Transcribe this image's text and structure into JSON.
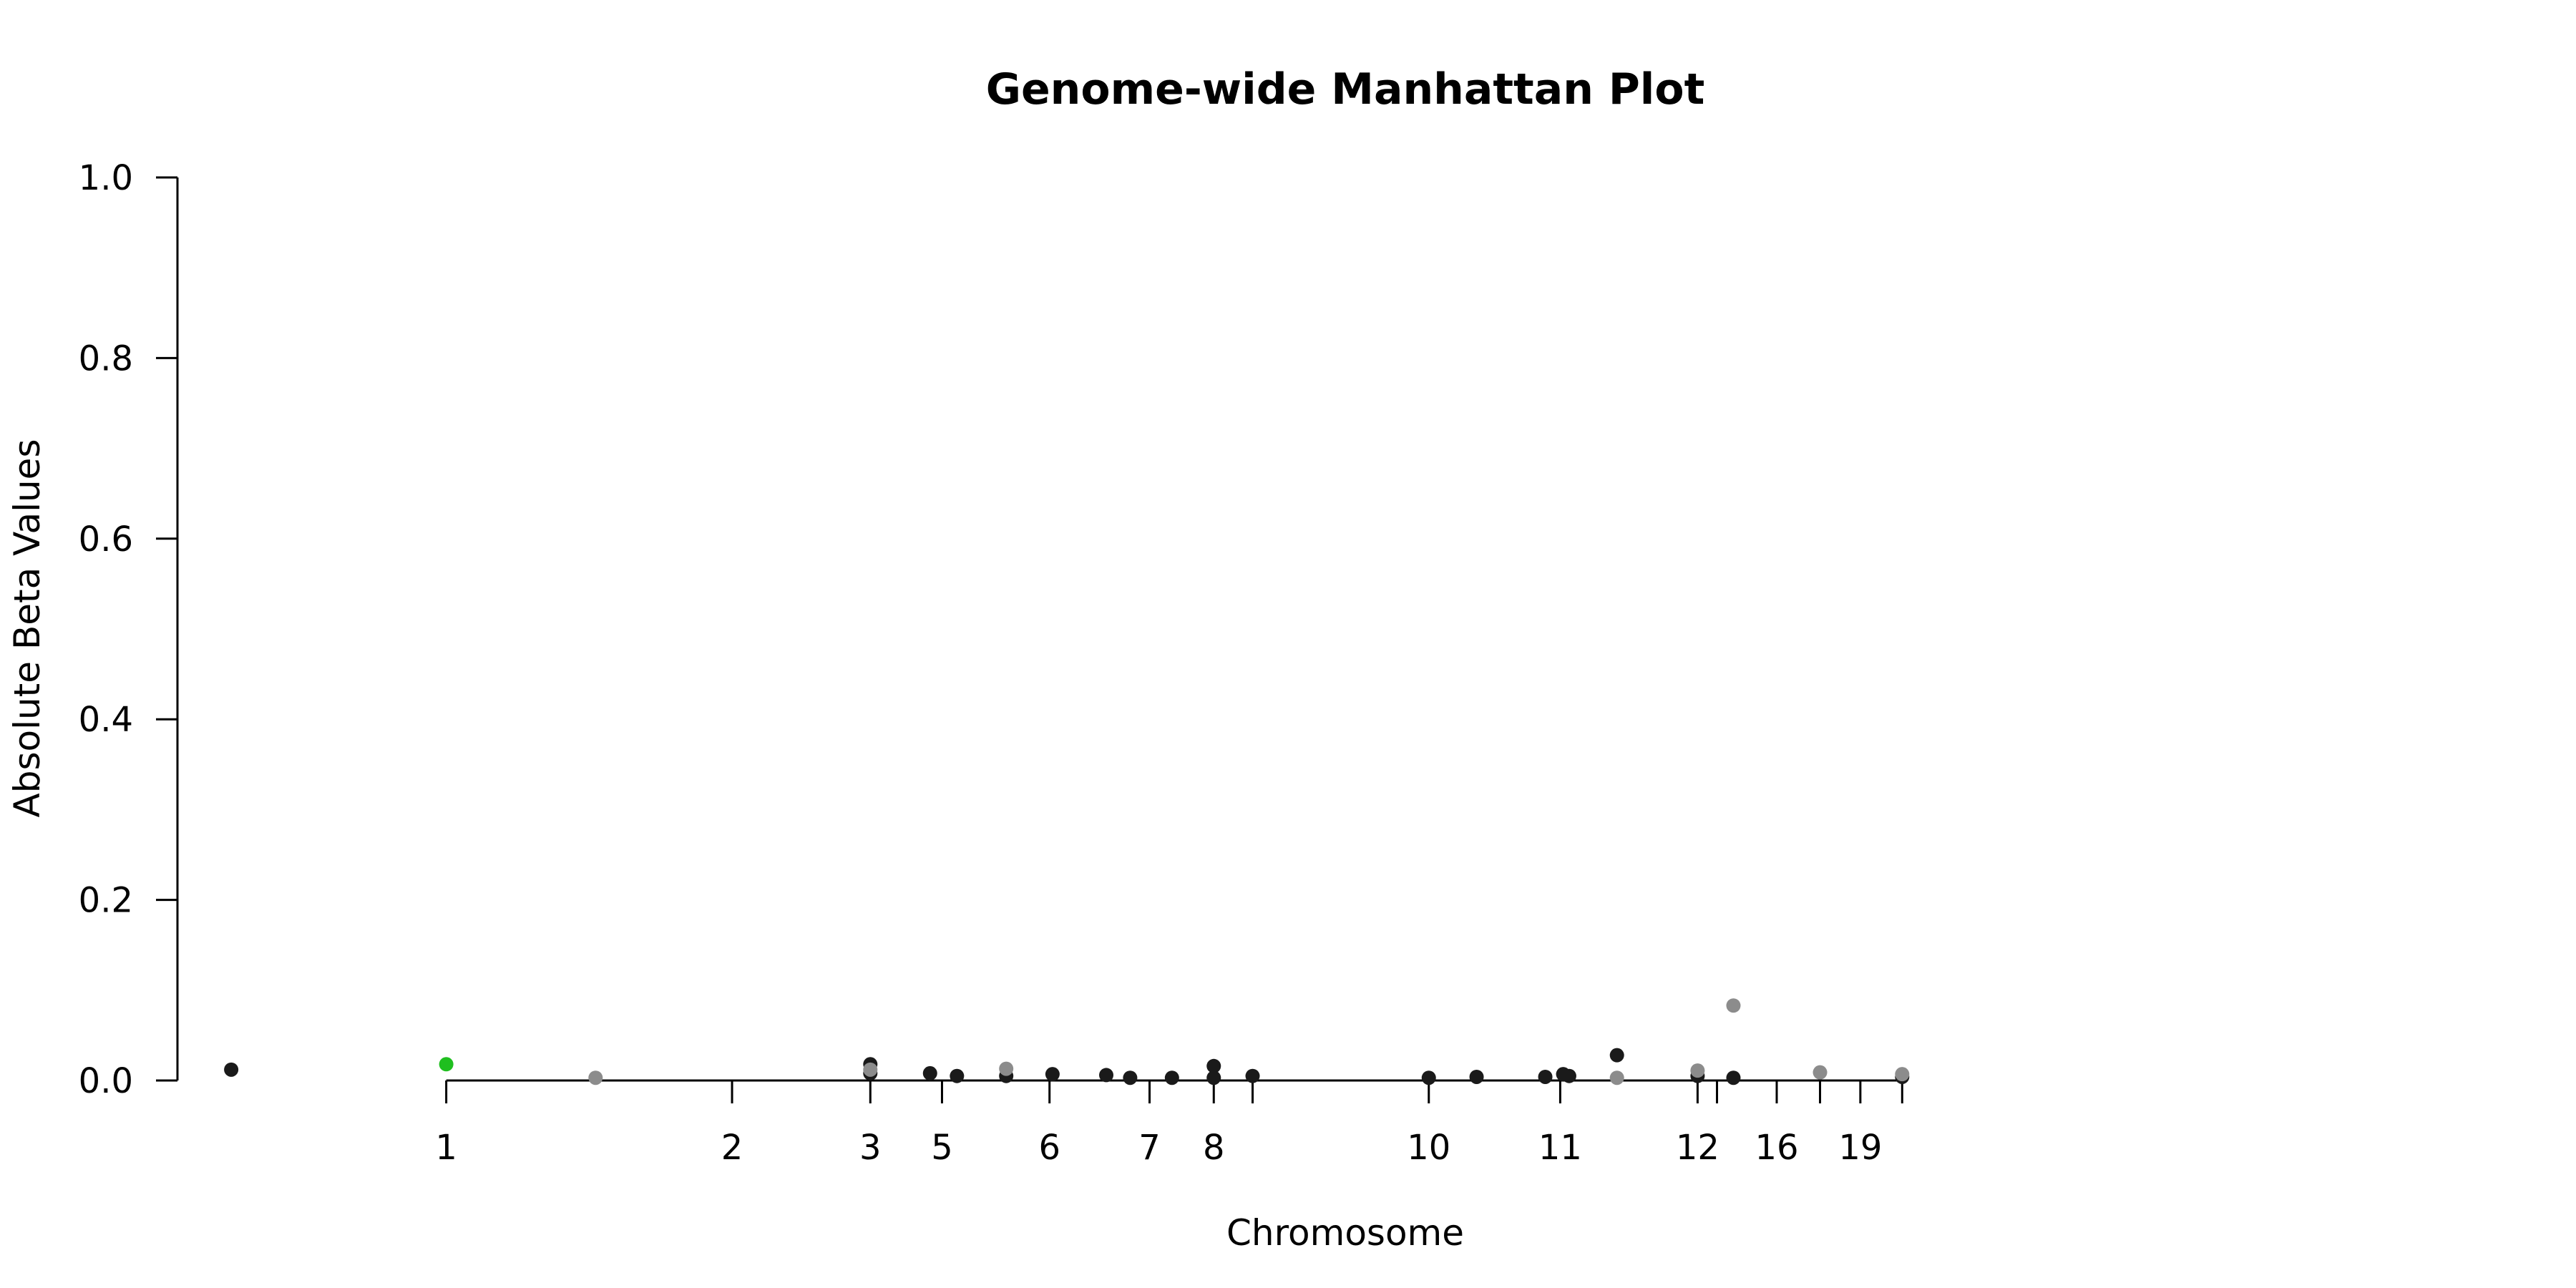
{
  "chart_data": {
    "type": "scatter",
    "title": "Genome-wide Manhattan Plot",
    "xlabel": "Chromosome",
    "ylabel": "Absolute Beta Values",
    "ylim": [
      0,
      1.0
    ],
    "xlim": [
      -0.9,
      6.7
    ],
    "grid": false,
    "legend": "none",
    "y_ticks": [
      {
        "value": 0.0,
        "label": "0.0"
      },
      {
        "value": 0.2,
        "label": "0.2"
      },
      {
        "value": 0.4,
        "label": "0.4"
      },
      {
        "value": 0.6,
        "label": "0.6"
      },
      {
        "value": 0.8,
        "label": "0.8"
      },
      {
        "value": 1.0,
        "label": "1.0"
      }
    ],
    "x_ticks": [
      {
        "value": 0.0,
        "label": "1"
      },
      {
        "value": 0.957,
        "label": "2"
      },
      {
        "value": 1.42,
        "label": "3"
      },
      {
        "value": 1.66,
        "label": "5"
      },
      {
        "value": 2.02,
        "label": "6"
      },
      {
        "value": 2.355,
        "label": "7"
      },
      {
        "value": 2.57,
        "label": "8"
      },
      {
        "value": 2.7,
        "label": ""
      },
      {
        "value": 3.29,
        "label": "10"
      },
      {
        "value": 3.73,
        "label": "11"
      },
      {
        "value": 4.19,
        "label": "12"
      },
      {
        "value": 4.255,
        "label": ""
      },
      {
        "value": 4.455,
        "label": "16"
      },
      {
        "value": 4.6,
        "label": ""
      },
      {
        "value": 4.735,
        "label": "19"
      },
      {
        "value": 4.875,
        "label": ""
      }
    ],
    "colors": {
      "default": "#1a1a1a",
      "alternate": "#8c8c8c",
      "highlight": "#1fbf1f"
    },
    "series": [
      {
        "color": "#1a1a1a",
        "points": [
          {
            "x": -0.72,
            "y": 0.012
          },
          {
            "x": 1.42,
            "y": 0.018
          },
          {
            "x": 1.42,
            "y": 0.008
          },
          {
            "x": 1.62,
            "y": 0.008
          },
          {
            "x": 1.71,
            "y": 0.005
          },
          {
            "x": 1.875,
            "y": 0.005
          },
          {
            "x": 2.03,
            "y": 0.007
          },
          {
            "x": 2.21,
            "y": 0.006
          },
          {
            "x": 2.29,
            "y": 0.003
          },
          {
            "x": 2.43,
            "y": 0.003
          },
          {
            "x": 2.57,
            "y": 0.016
          },
          {
            "x": 2.57,
            "y": 0.003
          },
          {
            "x": 2.7,
            "y": 0.005
          },
          {
            "x": 3.29,
            "y": 0.003
          },
          {
            "x": 3.45,
            "y": 0.004
          },
          {
            "x": 3.68,
            "y": 0.004
          },
          {
            "x": 3.74,
            "y": 0.007
          },
          {
            "x": 3.76,
            "y": 0.005
          },
          {
            "x": 3.92,
            "y": 0.028
          },
          {
            "x": 4.19,
            "y": 0.005
          },
          {
            "x": 4.31,
            "y": 0.003
          },
          {
            "x": 4.875,
            "y": 0.004
          }
        ]
      },
      {
        "color": "#8c8c8c",
        "points": [
          {
            "x": 0.5,
            "y": 0.003
          },
          {
            "x": 1.42,
            "y": 0.012
          },
          {
            "x": 1.875,
            "y": 0.013
          },
          {
            "x": 3.92,
            "y": 0.003
          },
          {
            "x": 4.19,
            "y": 0.011
          },
          {
            "x": 4.31,
            "y": 0.083
          },
          {
            "x": 4.6,
            "y": 0.009
          },
          {
            "x": 4.875,
            "y": 0.007
          }
        ]
      },
      {
        "color": "#1fbf1f",
        "points": [
          {
            "x": 0.0,
            "y": 0.018
          }
        ]
      }
    ]
  }
}
